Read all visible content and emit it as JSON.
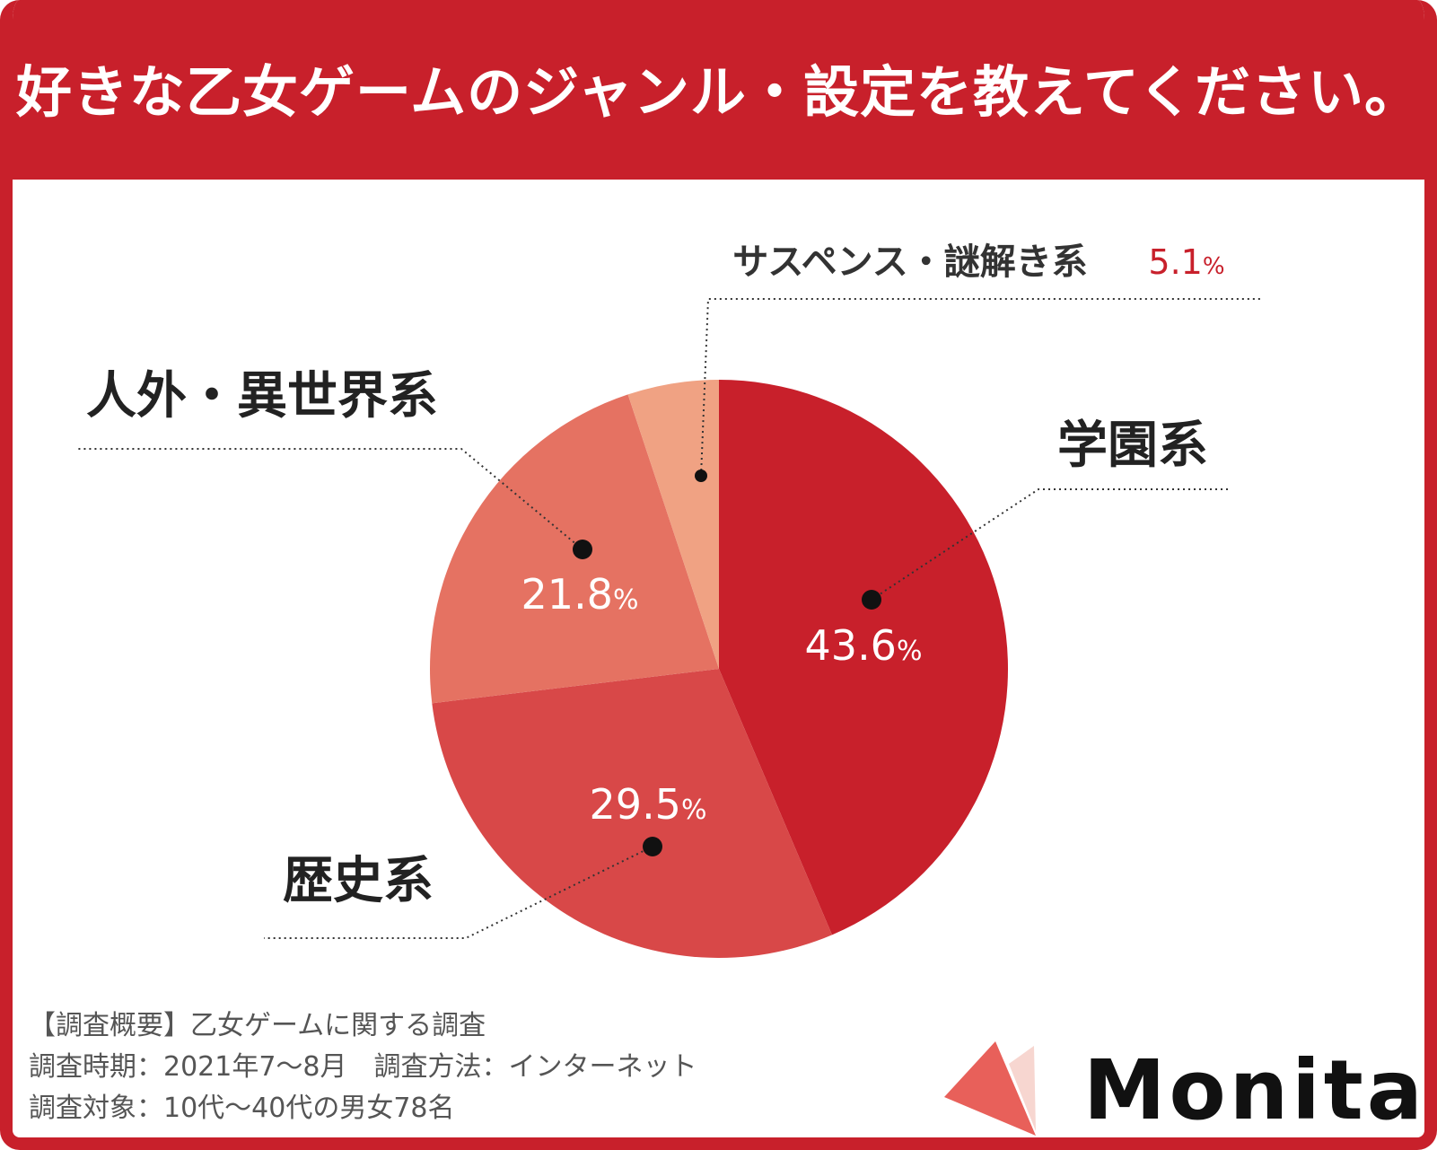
{
  "title": "好きな乙女ゲームのジャンル・設定を教えてください。",
  "chart_data": {
    "type": "pie",
    "title": "好きな乙女ゲームのジャンル・設定を教えてください。",
    "unit": "%",
    "start": "12 o'clock",
    "direction": "clockwise",
    "slices": [
      {
        "label": "学園系",
        "value": 43.6,
        "value_text": "43.6",
        "color": "#c8202b"
      },
      {
        "label": "歴史系",
        "value": 29.5,
        "value_text": "29.5",
        "color": "#d84848"
      },
      {
        "label": "人外・異世界系",
        "value": 21.8,
        "value_text": "21.8",
        "color": "#e57262"
      },
      {
        "label": "サスペンス・謎解き系",
        "value": 5.1,
        "value_text": "5.1",
        "color": "#f0a283"
      }
    ]
  },
  "notes": {
    "line1": "【調査概要】乙女ゲームに関する調査",
    "line2": "調査時期：2021年7～8月　調査方法：インターネット",
    "line3": "調査対象：10代～40代の男女78名"
  },
  "logo": {
    "text": "Monita",
    "colors": {
      "primary": "#e8605a",
      "secondary": "#f7d6d0"
    }
  }
}
